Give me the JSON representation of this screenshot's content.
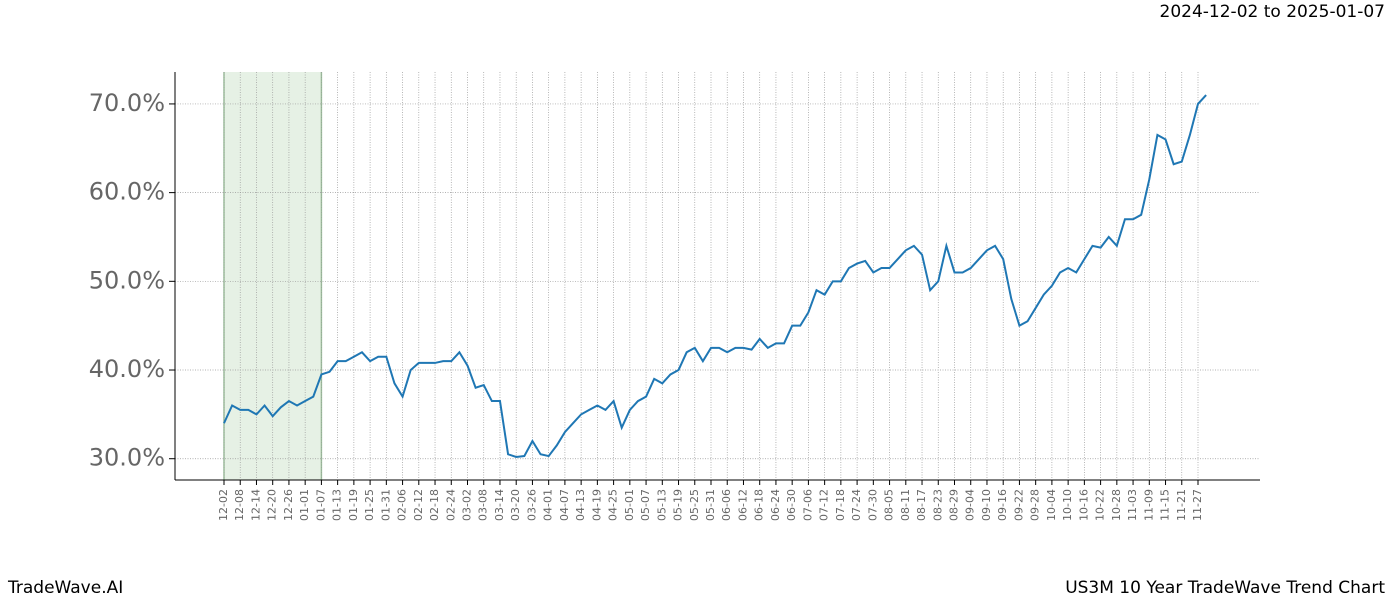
{
  "chart_data": {
    "type": "line",
    "title": "US3M 10 Year TradeWave Trend Chart",
    "subtitle": "2024-12-02 to 2025-01-07",
    "brand": "TradeWave.AI",
    "categories": [
      "12-02",
      null,
      "12-08",
      null,
      "12-14",
      null,
      "12-20",
      null,
      "12-26",
      null,
      "01-01",
      null,
      "01-07",
      null,
      "01-13",
      null,
      "01-19",
      null,
      "01-25",
      null,
      "01-31",
      null,
      "02-06",
      null,
      "02-12",
      null,
      "02-18",
      null,
      "02-24",
      null,
      "03-02",
      null,
      "03-08",
      null,
      "03-14",
      null,
      "03-20",
      null,
      "03-26",
      null,
      "04-01",
      null,
      "04-07",
      null,
      "04-13",
      null,
      "04-19",
      null,
      "04-25",
      null,
      "05-01",
      null,
      "05-07",
      null,
      "05-13",
      null,
      "05-19",
      null,
      "05-25",
      null,
      "05-31",
      null,
      "06-06",
      null,
      "06-12",
      null,
      "06-18",
      null,
      "06-24",
      null,
      "06-30",
      null,
      "07-06",
      null,
      "07-12",
      null,
      "07-18",
      null,
      "07-24",
      null,
      "07-30",
      null,
      "08-05",
      null,
      "08-11",
      null,
      "08-17",
      null,
      "08-23",
      null,
      "08-29",
      null,
      "09-04",
      null,
      "09-10",
      null,
      "09-16",
      null,
      "09-22",
      null,
      "09-28",
      null,
      "10-04",
      null,
      "10-10",
      null,
      "10-16",
      null,
      "10-22",
      null,
      "10-28",
      null,
      "11-03",
      null,
      "11-09",
      null,
      "11-15",
      null,
      "11-21",
      null,
      "11-27",
      null
    ],
    "series": [
      {
        "name": "US3M",
        "color": "#1f77b4",
        "values": [
          34.0,
          36.0,
          35.5,
          35.5,
          35.0,
          36.0,
          34.8,
          35.8,
          36.5,
          36.0,
          36.5,
          37.0,
          39.5,
          39.8,
          41.0,
          41.0,
          41.5,
          42.0,
          41.0,
          41.5,
          41.5,
          38.5,
          37.0,
          40.0,
          40.8,
          40.8,
          40.8,
          41.0,
          41.0,
          42.0,
          40.5,
          38.0,
          38.3,
          36.5,
          36.5,
          30.5,
          30.2,
          30.3,
          32.0,
          30.5,
          30.3,
          31.5,
          33.0,
          34.0,
          35.0,
          35.5,
          36.0,
          35.5,
          36.5,
          33.5,
          35.5,
          36.5,
          37.0,
          39.0,
          38.5,
          39.5,
          40.0,
          42.0,
          42.5,
          41.0,
          42.5,
          42.5,
          42.0,
          42.5,
          42.5,
          42.3,
          43.5,
          42.5,
          43.0,
          43.0,
          45.0,
          45.0,
          46.5,
          49.0,
          48.5,
          50.0,
          50.0,
          51.5,
          52.0,
          52.3,
          51.0,
          51.5,
          51.5,
          52.5,
          53.5,
          54.0,
          53.0,
          49.0,
          50.0,
          54.0,
          51.0,
          51.0,
          51.5,
          52.5,
          53.5,
          54.0,
          52.5,
          48.0,
          45.0,
          45.5,
          47.0,
          48.5,
          49.5,
          51.0,
          51.5,
          51.0,
          52.5,
          54.0,
          53.8,
          55.0,
          54.0,
          57.0,
          57.0,
          57.5,
          61.5,
          66.5,
          66.0,
          63.2,
          63.5,
          66.5,
          70.0,
          71.0
        ]
      }
    ],
    "ylim": [
      27.6,
      73.6
    ],
    "yticks": [
      {
        "value": 30,
        "label": "30.0%"
      },
      {
        "value": 40,
        "label": "40.0%"
      },
      {
        "value": 50,
        "label": "50.0%"
      },
      {
        "value": 60,
        "label": "60.0%"
      },
      {
        "value": 70,
        "label": "70.0%"
      }
    ],
    "grid": true,
    "highlight": {
      "from_index": 0,
      "to_index": 12,
      "color": "#d5e8d4"
    }
  }
}
